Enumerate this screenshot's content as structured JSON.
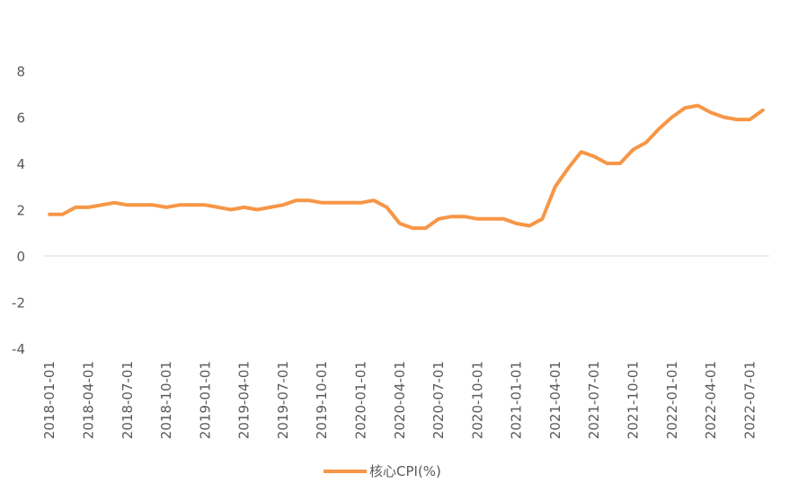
{
  "chart_data": {
    "type": "line",
    "title": "",
    "xlabel": "",
    "ylabel": "",
    "ylim": [
      -4,
      8
    ],
    "yticks": [
      "-4",
      "-2",
      "0",
      "2",
      "4",
      "6",
      "8"
    ],
    "x_tick_labels": [
      "2018-01-01",
      "2018-04-01",
      "2018-07-01",
      "2018-10-01",
      "2019-01-01",
      "2019-04-01",
      "2019-07-01",
      "2019-10-01",
      "2020-01-01",
      "2020-04-01",
      "2020-07-01",
      "2020-10-01",
      "2021-01-01",
      "2021-04-01",
      "2021-07-01",
      "2021-10-01",
      "2022-01-01",
      "2022-04-01",
      "2022-07-01"
    ],
    "grid": false,
    "legend_position": "bottom",
    "colors": {
      "line": "#F79646",
      "zero_line": "#D9D9D9",
      "text": "#595959"
    },
    "x": [
      "2018-01-01",
      "2018-02-01",
      "2018-03-01",
      "2018-04-01",
      "2018-05-01",
      "2018-06-01",
      "2018-07-01",
      "2018-08-01",
      "2018-09-01",
      "2018-10-01",
      "2018-11-01",
      "2018-12-01",
      "2019-01-01",
      "2019-02-01",
      "2019-03-01",
      "2019-04-01",
      "2019-05-01",
      "2019-06-01",
      "2019-07-01",
      "2019-08-01",
      "2019-09-01",
      "2019-10-01",
      "2019-11-01",
      "2019-12-01",
      "2020-01-01",
      "2020-02-01",
      "2020-03-01",
      "2020-04-01",
      "2020-05-01",
      "2020-06-01",
      "2020-07-01",
      "2020-08-01",
      "2020-09-01",
      "2020-10-01",
      "2020-11-01",
      "2020-12-01",
      "2021-01-01",
      "2021-02-01",
      "2021-03-01",
      "2021-04-01",
      "2021-05-01",
      "2021-06-01",
      "2021-07-01",
      "2021-08-01",
      "2021-09-01",
      "2021-10-01",
      "2021-11-01",
      "2021-12-01",
      "2022-01-01",
      "2022-02-01",
      "2022-03-01",
      "2022-04-01",
      "2022-05-01",
      "2022-06-01",
      "2022-07-01",
      "2022-08-01"
    ],
    "series": [
      {
        "name": "核心CPI(%)",
        "values": [
          1.8,
          1.8,
          2.1,
          2.1,
          2.2,
          2.3,
          2.2,
          2.2,
          2.2,
          2.1,
          2.2,
          2.2,
          2.2,
          2.1,
          2.0,
          2.1,
          2.0,
          2.1,
          2.2,
          2.4,
          2.4,
          2.3,
          2.3,
          2.3,
          2.3,
          2.4,
          2.1,
          1.4,
          1.2,
          1.2,
          1.6,
          1.7,
          1.7,
          1.6,
          1.6,
          1.6,
          1.4,
          1.3,
          1.6,
          3.0,
          3.8,
          4.5,
          4.3,
          4.0,
          4.0,
          4.6,
          4.9,
          5.5,
          6.0,
          6.4,
          6.5,
          6.2,
          6.0,
          5.9,
          5.9,
          6.3
        ]
      }
    ]
  }
}
